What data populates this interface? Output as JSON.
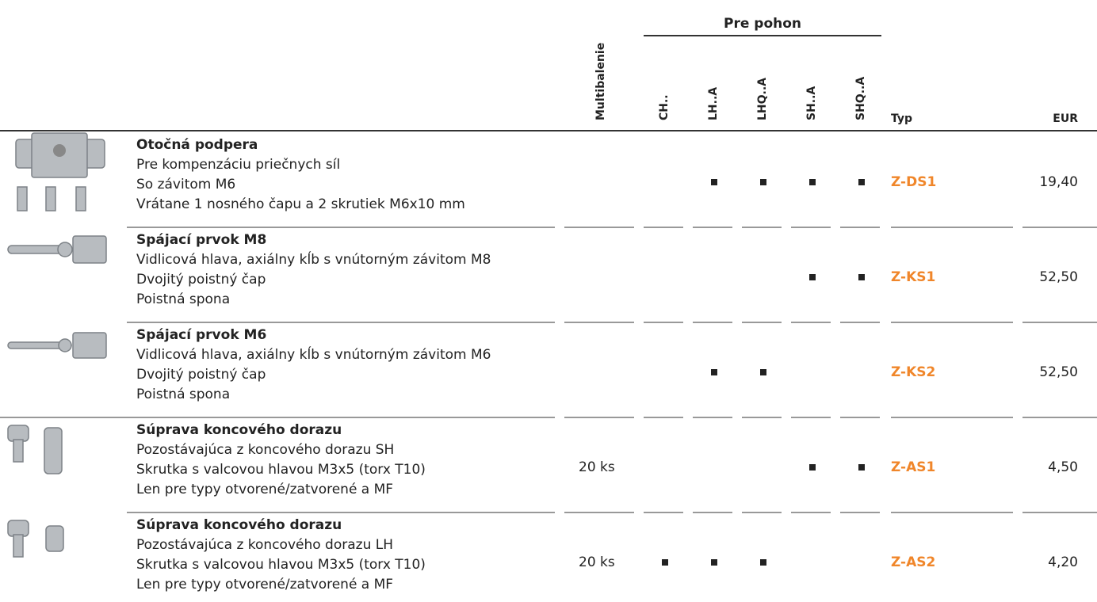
{
  "header": {
    "group": "Pre pohon",
    "columns": [
      "Multibalenie",
      "CH..",
      "LH..A",
      "LHQ..A",
      "SH..A",
      "SHQ..A",
      "Typ",
      "EUR"
    ]
  },
  "rows": [
    {
      "title": "Otočná podpera",
      "lines": [
        "Pre kompenzáciu priečnych síl",
        "So závitom M6",
        "Vrátane 1 nosného čapu a 2 skrutiek M6x10 mm"
      ],
      "drives": [
        false,
        true,
        true,
        true,
        true
      ],
      "type": "Z-DS1",
      "price": "19,40"
    },
    {
      "title": "Spájací prvok M8",
      "lines": [
        "Vidlicová hlava, axiálny kĺb s vnútorným závitom M8",
        "Dvojitý poistný čap",
        "Poistná spona"
      ],
      "drives": [
        false,
        false,
        false,
        true,
        true
      ],
      "type": "Z-KS1",
      "price": "52,50"
    },
    {
      "title": "Spájací prvok M6",
      "lines": [
        "Vidlicová hlava, axiálny kĺb s vnútorným závitom M6",
        "Dvojitý poistný čap",
        "Poistná spona"
      ],
      "drives": [
        false,
        true,
        true,
        false,
        false
      ],
      "type": "Z-KS2",
      "price": "52,50"
    },
    {
      "title": "Súprava koncového dorazu",
      "lines": [
        "Pozostávajúca z koncového dorazu SH",
        "Skrutka s valcovou hlavou M3x5 (torx T10)",
        "Len pre typy otvorené/zatvorené a MF"
      ],
      "pack": "20 ks",
      "drives": [
        false,
        false,
        false,
        true,
        true
      ],
      "type": "Z-AS1",
      "price": "4,50"
    },
    {
      "title": "Súprava koncového dorazu",
      "lines": [
        "Pozostávajúca z koncového dorazu LH",
        "Skrutka s valcovou hlavou M3x5 (torx T10)",
        "Len pre typy otvorené/zatvorené a MF"
      ],
      "pack": "20 ks",
      "drives": [
        true,
        true,
        true,
        false,
        false
      ],
      "type": "Z-AS2",
      "price": "4,20"
    }
  ]
}
